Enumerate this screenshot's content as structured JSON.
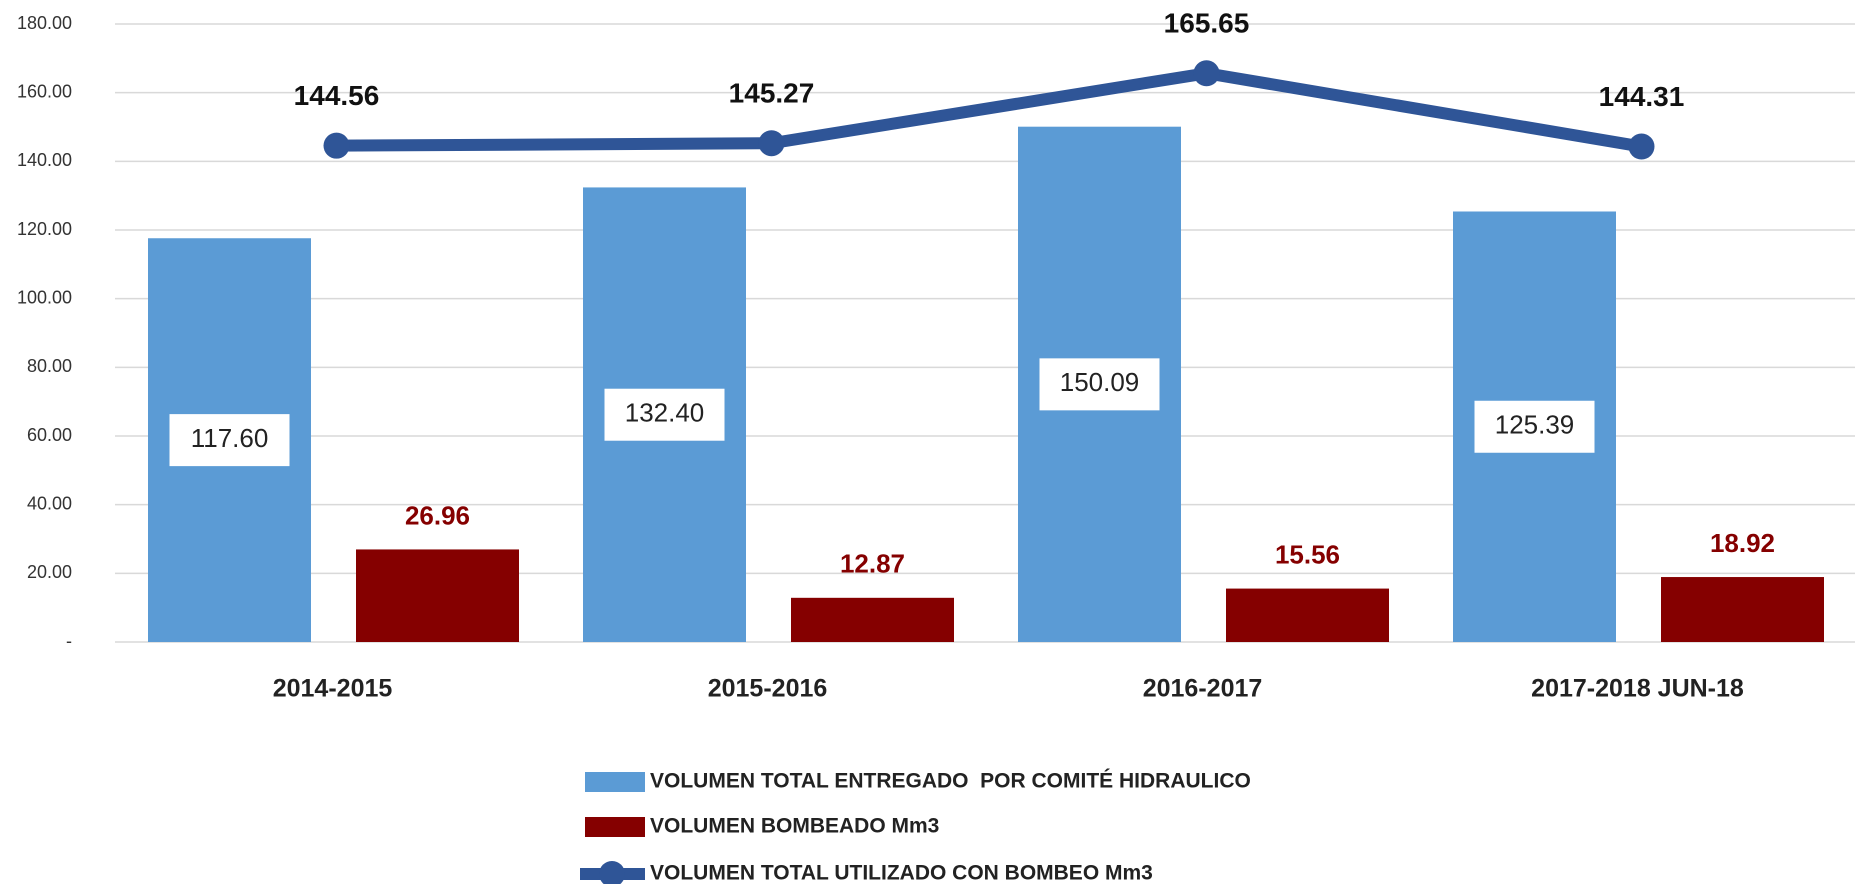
{
  "chart_data": {
    "type": "bar",
    "categories": [
      "2014-2015",
      "2015-2016",
      "2016-2017",
      "2017-2018 JUN-18"
    ],
    "series": [
      {
        "name": "VOLUMEN TOTAL ENTREGADO  POR COMITÉ HIDRAULICO",
        "type": "bar",
        "color": "#5b9bd5",
        "values": [
          117.6,
          132.4,
          150.09,
          125.39
        ],
        "value_labels": [
          "117.60",
          "132.40",
          "150.09",
          "125.39"
        ]
      },
      {
        "name": "VOLUMEN BOMBEADO Mm3",
        "type": "bar",
        "color": "#850000",
        "values": [
          26.96,
          12.87,
          15.56,
          18.92
        ]
      },
      {
        "name": "VOLUMEN TOTAL UTILIZADO CON BOMBEO Mm3",
        "type": "line",
        "color": "#2f5597",
        "values": [
          144.56,
          145.27,
          165.65,
          144.31
        ]
      }
    ],
    "ylim": [
      0,
      180
    ],
    "yticks": [
      {
        "value": 0,
        "label": "-"
      },
      {
        "value": 20,
        "label": "20.00"
      },
      {
        "value": 40,
        "label": "40.00"
      },
      {
        "value": 60,
        "label": "60.00"
      },
      {
        "value": 80,
        "label": "80.00"
      },
      {
        "value": 100,
        "label": "100.00"
      },
      {
        "value": 120,
        "label": "120.00"
      },
      {
        "value": 140,
        "label": "140.00"
      },
      {
        "value": 160,
        "label": "160.00"
      },
      {
        "value": 180,
        "label": "180.00"
      }
    ],
    "grid": true
  }
}
